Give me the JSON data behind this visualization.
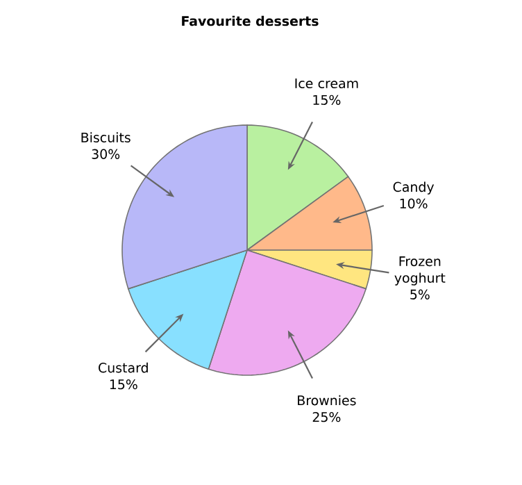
{
  "chart_data": {
    "type": "pie",
    "title": "Favourite desserts",
    "categories": [
      "Ice cream",
      "Candy",
      "Frozen yoghurt",
      "Brownies",
      "Custard",
      "Biscuits"
    ],
    "values": [
      15,
      10,
      5,
      25,
      15,
      30
    ],
    "value_labels": [
      "15%",
      "10%",
      "5%",
      "25%",
      "15%",
      "30%"
    ],
    "colors": [
      "#b9f0a0",
      "#ffb98a",
      "#ffe680",
      "#eeaaf0",
      "#88e0ff",
      "#b8b8f8"
    ]
  }
}
